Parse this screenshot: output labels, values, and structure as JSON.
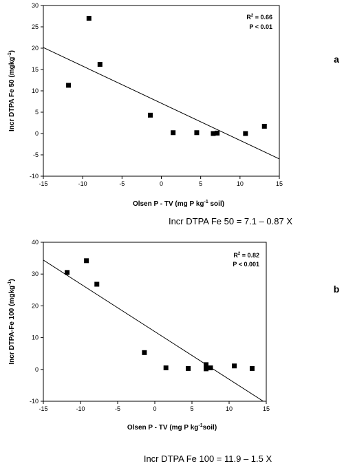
{
  "chart_data": [
    {
      "type": "scatter",
      "panel_label": "a",
      "ylabel_main": "Incr DTPA Fe 50 (mgkg",
      "ylabel_sup": "-1",
      "ylabel_end": ")",
      "xlabel_main": "Olsen P - TV (mg P kg",
      "xlabel_sup": "-1",
      "xlabel_end": " soil)",
      "xlim": [
        -15,
        15
      ],
      "ylim": [
        -10,
        30
      ],
      "xticks": [
        -15,
        -10,
        -5,
        0,
        5,
        10,
        15
      ],
      "yticks": [
        -10,
        -5,
        0,
        5,
        10,
        15,
        20,
        25,
        30
      ],
      "r2_label": "R",
      "r2_sup": "2",
      "r2_value": " = 0.66",
      "p_label": "P < 0.01",
      "points": [
        {
          "x": -11.8,
          "y": 11.3
        },
        {
          "x": -9.2,
          "y": 27.0
        },
        {
          "x": -7.8,
          "y": 16.2
        },
        {
          "x": -1.4,
          "y": 4.3
        },
        {
          "x": 1.5,
          "y": 0.2
        },
        {
          "x": 4.5,
          "y": 0.2
        },
        {
          "x": 6.6,
          "y": 0.0
        },
        {
          "x": 7.1,
          "y": 0.1
        },
        {
          "x": 10.7,
          "y": 0.0
        },
        {
          "x": 13.1,
          "y": 1.7
        }
      ],
      "fit": {
        "intercept": 7.1,
        "slope": -0.87
      },
      "equation": "Incr DTPA Fe 50 = 7.1 – 0.87 X"
    },
    {
      "type": "scatter",
      "panel_label": "b",
      "ylabel_main": "Incr DTPA-Fe 100 (mgkg",
      "ylabel_sup": "-1",
      "ylabel_end": ")",
      "xlabel_main": "Olsen P - TV (mg P kg",
      "xlabel_sup": "-1",
      "xlabel_end": "soil)",
      "xlim": [
        -15,
        15
      ],
      "ylim": [
        -10,
        40
      ],
      "xticks": [
        -15,
        -10,
        -5,
        0,
        5,
        10,
        15
      ],
      "yticks": [
        -10,
        0,
        10,
        20,
        30,
        40
      ],
      "r2_label": "R",
      "r2_sup": "2",
      "r2_value": " = 0.82",
      "p_label": "P < 0.001",
      "points": [
        {
          "x": -11.8,
          "y": 30.5
        },
        {
          "x": -9.2,
          "y": 34.2
        },
        {
          "x": -7.8,
          "y": 26.8
        },
        {
          "x": -1.4,
          "y": 5.3
        },
        {
          "x": 1.5,
          "y": 0.5
        },
        {
          "x": 4.5,
          "y": 0.3
        },
        {
          "x": 6.9,
          "y": 1.5
        },
        {
          "x": 6.9,
          "y": 0.2
        },
        {
          "x": 7.5,
          "y": 0.5
        },
        {
          "x": 10.7,
          "y": 1.1
        },
        {
          "x": 13.1,
          "y": 0.3
        }
      ],
      "fit": {
        "intercept": 11.9,
        "slope": -1.5
      },
      "equation": "Incr DTPA Fe 100 = 11.9 – 1.5 X"
    }
  ]
}
